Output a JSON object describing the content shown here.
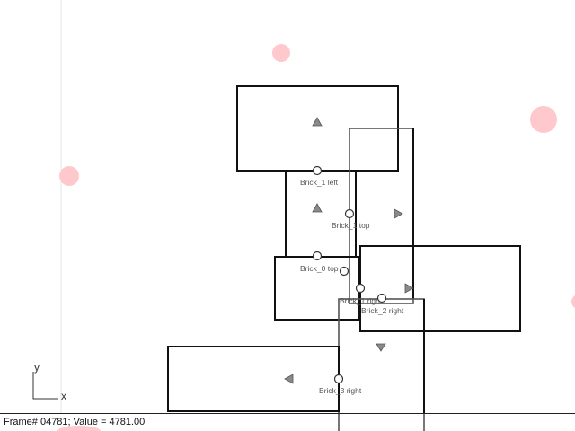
{
  "scene": {
    "bricks": [
      {
        "name": "brick-top-left"
      },
      {
        "name": "brick-upper-middle"
      },
      {
        "name": "brick-tall-gray"
      },
      {
        "name": "brick-middle-left"
      },
      {
        "name": "brick-right"
      },
      {
        "name": "brick-lower-center"
      },
      {
        "name": "brick-bottom-left"
      }
    ],
    "anchors": [
      {
        "name": "anchor-brick-1-left",
        "label": "Brick_1 left"
      },
      {
        "name": "anchor-brick-1-top",
        "label": "Brick_1 top"
      },
      {
        "name": "anchor-brick-0-top",
        "label": "Brick_0 top"
      },
      {
        "name": "anchor-brick-1-right",
        "label": "Brick_1 righ"
      },
      {
        "name": "anchor-brick-2-right",
        "label": "Brick_2 right"
      },
      {
        "name": "anchor-brick-3-right",
        "label": "Brick_3 right"
      },
      {
        "name": "anchor-unlabeled",
        "label": ""
      }
    ],
    "colors": {
      "brick_stroke": "#111111",
      "secondary_stroke": "#555555",
      "particle": "#ffc8cc",
      "marker": "#8a8a8a"
    }
  },
  "axes": {
    "x_label": "x",
    "y_label": "y"
  },
  "status": {
    "text": "Frame# 04781;  Value = 4781.00"
  }
}
